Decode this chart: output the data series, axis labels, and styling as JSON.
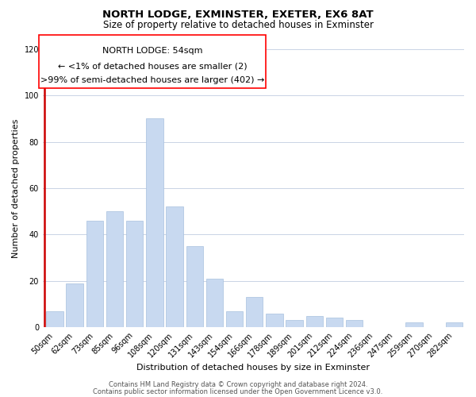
{
  "title": "NORTH LODGE, EXMINSTER, EXETER, EX6 8AT",
  "subtitle": "Size of property relative to detached houses in Exminster",
  "xlabel": "Distribution of detached houses by size in Exminster",
  "ylabel": "Number of detached properties",
  "bar_labels": [
    "50sqm",
    "62sqm",
    "73sqm",
    "85sqm",
    "96sqm",
    "108sqm",
    "120sqm",
    "131sqm",
    "143sqm",
    "154sqm",
    "166sqm",
    "178sqm",
    "189sqm",
    "201sqm",
    "212sqm",
    "224sqm",
    "236sqm",
    "247sqm",
    "259sqm",
    "270sqm",
    "282sqm"
  ],
  "bar_values": [
    7,
    19,
    46,
    50,
    46,
    90,
    52,
    35,
    21,
    7,
    13,
    6,
    3,
    5,
    4,
    3,
    0,
    0,
    2,
    0,
    2
  ],
  "bar_color": "#c8d9f0",
  "bar_edge_color": "#a8c0de",
  "highlight_edge_color": "#cc0000",
  "annotation_line1": "NORTH LODGE: 54sqm",
  "annotation_line2": "← <1% of detached houses are smaller (2)",
  "annotation_line3": ">99% of semi-detached houses are larger (402) →",
  "ylim": [
    0,
    120
  ],
  "yticks": [
    0,
    20,
    40,
    60,
    80,
    100,
    120
  ],
  "footer_line1": "Contains HM Land Registry data © Crown copyright and database right 2024.",
  "footer_line2": "Contains public sector information licensed under the Open Government Licence v3.0.",
  "background_color": "#ffffff",
  "grid_color": "#c0cce0",
  "title_fontsize": 9.5,
  "subtitle_fontsize": 8.5,
  "axis_label_fontsize": 8,
  "tick_fontsize": 7,
  "annotation_fontsize": 8,
  "footer_fontsize": 6
}
